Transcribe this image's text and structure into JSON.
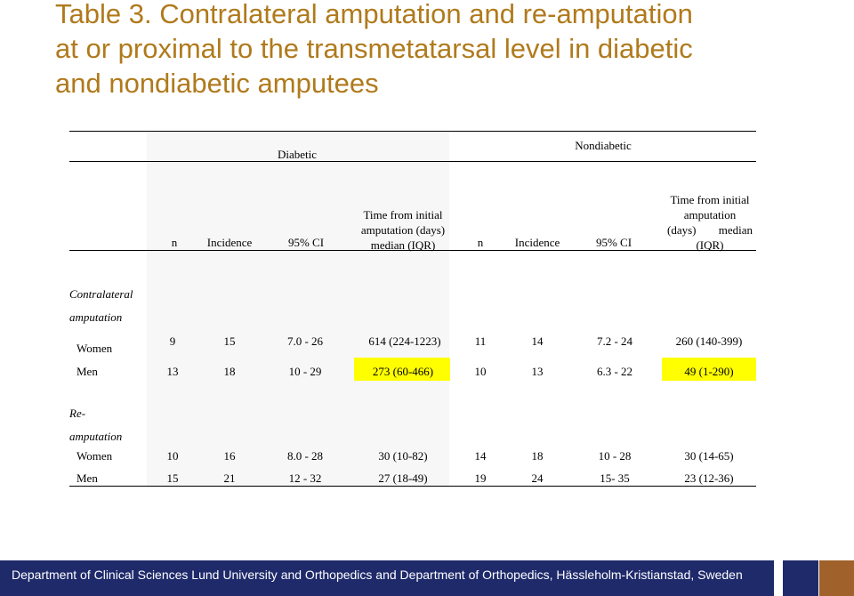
{
  "title": {
    "line1": "Table 3. Contralateral amputation and re-amputation",
    "line2": "at or proximal to the transmetatarsal level in diabetic",
    "line3": "and nondiabetic amputees"
  },
  "table": {
    "group_headers": {
      "diabetic": "Diabetic",
      "nondiabetic": "Nondiabetic"
    },
    "col_headers": {
      "n": "n",
      "incidence": "Incidence",
      "ci": "95% CI",
      "time_line1": "Time from initial",
      "time_line2": "amputation (days)",
      "time_line3": "median (IQR)",
      "nd_time_line1": "Time from initial",
      "nd_time_line2": "amputation",
      "nd_time_line3a": "(days)",
      "nd_time_line3b": "median",
      "nd_time_line4": "(IQR)"
    },
    "sections": [
      {
        "label_line1": "Contralateral",
        "label_line2": "amputation",
        "rows": [
          {
            "label": "Women",
            "d_n": "9",
            "d_inc": "15",
            "d_ci": "7.0 - 26",
            "d_time": "614 (224-1223)",
            "nd_n": "11",
            "nd_inc": "14",
            "nd_ci": "7.2 - 24",
            "nd_time": "260 (140-399)"
          },
          {
            "label": "Men",
            "d_n": "13",
            "d_inc": "18",
            "d_ci": "10 - 29",
            "d_time": "273 (60-466)",
            "nd_n": "10",
            "nd_inc": "13",
            "nd_ci": "6.3 - 22",
            "nd_time": "49 (1-290)"
          }
        ]
      },
      {
        "label_line1": "Re-",
        "label_line2": "amputation",
        "rows": [
          {
            "label": "Women",
            "d_n": "10",
            "d_inc": "16",
            "d_ci": "8.0 - 28",
            "d_time": "30 (10-82)",
            "nd_n": "14",
            "nd_inc": "18",
            "nd_ci": "10 - 28",
            "nd_time": "30 (14-65)"
          },
          {
            "label": "Men",
            "d_n": "15",
            "d_inc": "21",
            "d_ci": "12 - 32",
            "d_time": "27 (18-49)",
            "nd_n": "19",
            "nd_inc": "24",
            "nd_ci": "15- 35",
            "nd_time": "23 (12-36)"
          }
        ]
      }
    ]
  },
  "footer": {
    "text": "Department of Clinical Sciences Lund University and Orthopedics and Department of Orthopedics, Hässleholm-Kristianstad, Sweden"
  },
  "colors": {
    "title": "#b07a1c",
    "footer_bar": "#1f2a6b",
    "footer_square_brown": "#a0612b",
    "highlight": "#ffff00"
  }
}
